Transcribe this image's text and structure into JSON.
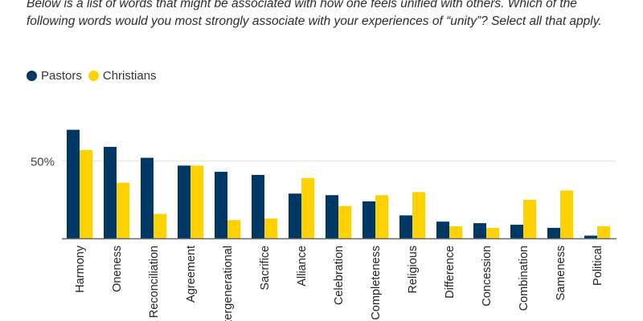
{
  "chart_data": {
    "type": "bar",
    "title": "Below is a list of words that might be associated with how one feels unified with others. Which of the following words would you most strongly associate with your experiences of “unity”? Select all that apply.",
    "categories": [
      "Harmony",
      "Oneness",
      "Reconciliation",
      "Agreement",
      "Intergenerational",
      "Sacrifice",
      "Alliance",
      "Celebration",
      "Completeness",
      "Religious",
      "Difference",
      "Concession",
      "Combination",
      "Sameness",
      "Political"
    ],
    "series": [
      {
        "name": "Pastors",
        "color": "#003865",
        "values": [
          70,
          59,
          52,
          47,
          43,
          41,
          29,
          28,
          24,
          15,
          11,
          10,
          9,
          7,
          2
        ]
      },
      {
        "name": "Christians",
        "color": "#FFD100",
        "values": [
          57,
          36,
          16,
          47,
          12,
          13,
          39,
          21,
          28,
          30,
          8,
          7,
          25,
          31,
          8
        ]
      }
    ],
    "yticks": [
      {
        "value": 50,
        "label": "50%"
      }
    ],
    "ylim": [
      0,
      75
    ],
    "xlabel": "",
    "ylabel": "",
    "grid": true,
    "legend_position": "top-left"
  }
}
